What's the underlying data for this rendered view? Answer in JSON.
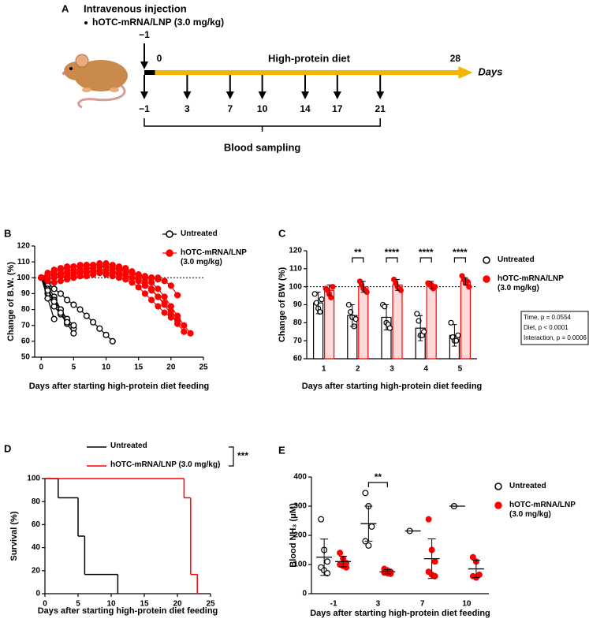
{
  "diagram": {
    "label": "A",
    "title": "Intravenous injection",
    "bullet": "hOTC-mRNA/LNP (3.0 mg/kg)",
    "injection_day": {
      "value": -1,
      "label": "−1"
    },
    "diet_start": 0,
    "diet_label": "High-protein diet",
    "diet_end": 28,
    "diet_color": "#f5b400",
    "axis_label": "Days",
    "sampling_days": [
      {
        "value": -1,
        "label": "−1"
      },
      3,
      7,
      10,
      14,
      17,
      21
    ],
    "sampling_label": "Blood sampling"
  },
  "chart_data": [
    {
      "type": "line",
      "label": "B",
      "xlabel": "Days after starting high-protein diet feeding",
      "ylabel": "Change of B.W. (%)",
      "xlim": [
        -1,
        25
      ],
      "xticks": [
        0,
        5,
        10,
        15,
        20,
        25
      ],
      "ylim": [
        50,
        120
      ],
      "yticks": [
        50,
        60,
        70,
        80,
        90,
        100,
        110,
        120
      ],
      "reference_line": 100,
      "legend": "top-right",
      "series": [
        {
          "name": "Untreated",
          "color": "#000000",
          "marker": "open",
          "lines": [
            {
              "x": [
                0,
                1,
                2,
                3,
                4,
                5,
                6,
                7,
                8,
                9,
                10,
                11
              ],
              "values": [
                100,
                97,
                93,
                90,
                86,
                83,
                80,
                76,
                72,
                68,
                64,
                60
              ]
            },
            {
              "x": [
                0,
                1,
                2,
                3,
                4,
                5
              ],
              "values": [
                100,
                95,
                88,
                80,
                73,
                68
              ]
            },
            {
              "x": [
                0,
                1,
                2,
                3,
                4,
                5
              ],
              "values": [
                100,
                93,
                86,
                80,
                74,
                70
              ]
            },
            {
              "x": [
                0,
                1,
                2,
                3,
                4,
                5
              ],
              "values": [
                100,
                90,
                82,
                77,
                71,
                65
              ]
            },
            {
              "x": [
                0,
                1,
                2,
                3,
                4
              ],
              "values": [
                100,
                92,
                85,
                78,
                72
              ]
            },
            {
              "x": [
                0,
                1,
                2
              ],
              "values": [
                100,
                87,
                74
              ]
            }
          ]
        },
        {
          "name": "hOTC-mRNA/LNP (3.0 mg/kg)",
          "color": "#ff0000",
          "marker": "filled",
          "lines": [
            {
              "x": [
                0,
                1,
                2,
                3,
                4,
                5,
                6,
                7,
                8,
                9,
                10,
                11,
                12,
                13,
                14,
                15,
                16,
                17,
                18,
                19,
                20,
                21,
                22,
                23
              ],
              "values": [
                100,
                103,
                105,
                106,
                107,
                107,
                108,
                108,
                108,
                109,
                109,
                108,
                107,
                106,
                104,
                102,
                100,
                97,
                93,
                88,
                82,
                76,
                70,
                65
              ]
            },
            {
              "x": [
                0,
                1,
                2,
                3,
                4,
                5,
                6,
                7,
                8,
                9,
                10,
                11,
                12,
                13,
                14,
                15,
                16,
                17,
                18,
                19,
                20,
                21,
                22
              ],
              "values": [
                100,
                101,
                102,
                103,
                104,
                105,
                105,
                106,
                106,
                107,
                107,
                106,
                106,
                105,
                103,
                100,
                97,
                93,
                88,
                83,
                77,
                71,
                66
              ]
            },
            {
              "x": [
                0,
                1,
                2,
                3,
                4,
                5,
                6,
                7,
                8,
                9,
                10,
                11,
                12,
                13,
                14,
                15,
                16,
                17,
                18,
                19,
                20,
                21
              ],
              "values": [
                100,
                99,
                100,
                101,
                101,
                102,
                103,
                103,
                104,
                105,
                105,
                104,
                103,
                102,
                100,
                98,
                95,
                92,
                88,
                84,
                79,
                74
              ]
            },
            {
              "x": [
                0,
                1,
                2,
                3,
                4,
                5,
                6,
                7,
                8,
                9,
                10,
                11,
                12,
                13,
                14,
                15,
                16,
                17,
                18,
                19,
                20,
                21
              ],
              "values": [
                100,
                98,
                97,
                98,
                99,
                100,
                101,
                101,
                102,
                103,
                102,
                101,
                100,
                99,
                97,
                94,
                90,
                86,
                82,
                78,
                75,
                73
              ]
            },
            {
              "x": [
                0,
                1,
                2,
                3,
                4,
                5,
                6,
                7,
                8,
                9,
                10,
                11,
                12,
                13,
                14,
                15,
                16,
                17,
                18,
                19,
                20,
                21
              ],
              "values": [
                100,
                102,
                104,
                105,
                106,
                107,
                107,
                108,
                108,
                108,
                107,
                106,
                105,
                104,
                103,
                102,
                101,
                100,
                100,
                98,
                95,
                89
              ]
            },
            {
              "x": [
                0,
                1,
                2,
                3,
                4,
                5,
                6,
                7,
                8,
                9,
                10,
                11,
                12,
                13,
                14,
                15,
                16,
                17,
                18
              ],
              "values": [
                100,
                101,
                102,
                102,
                103,
                103,
                104,
                104,
                104,
                104,
                103,
                103,
                102,
                101,
                100,
                100,
                100,
                100,
                99
              ]
            }
          ]
        }
      ]
    },
    {
      "type": "bar",
      "label": "C",
      "xlabel": "Days after starting high-protein diet feeding",
      "ylabel": "Change of BW (%)",
      "categories": [
        "1",
        "2",
        "3",
        "4",
        "5"
      ],
      "ylim": [
        60,
        120
      ],
      "yticks": [
        60,
        70,
        80,
        90,
        100,
        110,
        120
      ],
      "reference_line": 100,
      "legend": "right",
      "significance": [
        null,
        "**",
        "****",
        "****",
        "****"
      ],
      "stats": [
        "Time, p = 0.0554",
        "Diet, p < 0.0001",
        "Interaction, p = 0.0006"
      ],
      "series": [
        {
          "name": "Untreated",
          "color": "#000000",
          "bar_fill": "#ffffff",
          "marker": "open",
          "values": [
            91,
            84,
            83,
            77,
            73
          ],
          "errors": [
            6,
            6,
            7,
            7,
            6
          ],
          "points": [
            [
              96,
              91,
              88,
              86,
              93
            ],
            [
              90,
              86,
              83,
              78,
              82
            ],
            [
              90,
              89,
              80,
              79,
              77
            ],
            [
              85,
              81,
              73,
              73,
              75
            ],
            [
              80,
              72,
              70,
              70,
              73
            ]
          ]
        },
        {
          "name": "hOTC-mRNA/LNP (3.0 mg/kg)",
          "color": "#ff0000",
          "bar_fill": "#ffd9d9",
          "marker": "filled",
          "values": [
            98,
            100,
            101,
            101,
            103
          ],
          "errors": [
            3,
            3,
            3,
            2,
            2
          ],
          "points": [
            [
              99,
              98,
              96,
              94,
              100
            ],
            [
              103,
              101,
              99,
              98,
              97
            ],
            [
              104,
              102,
              100,
              99,
              98
            ],
            [
              102,
              101,
              101,
              99,
              100
            ],
            [
              106,
              104,
              102,
              103,
              100
            ]
          ]
        }
      ]
    },
    {
      "type": "step",
      "label": "D",
      "xlabel": "Days after starting high-protein diet feeding",
      "ylabel": "Survival (%)",
      "xlim": [
        0,
        25
      ],
      "xticks": [
        0,
        5,
        10,
        15,
        20,
        25
      ],
      "ylim": [
        0,
        100
      ],
      "yticks": [
        0,
        20,
        40,
        60,
        80,
        100
      ],
      "legend": "top",
      "significance": "***",
      "series": [
        {
          "name": "Untreated",
          "color": "#000000",
          "x": [
            0,
            2,
            5,
            6,
            11
          ],
          "values": [
            100,
            83.3,
            50,
            16.7,
            0
          ]
        },
        {
          "name": "hOTC-mRNA/LNP (3.0 mg/kg)",
          "color": "#ff0000",
          "x": [
            0,
            21,
            22,
            23
          ],
          "values": [
            100,
            83.3,
            16.7,
            0
          ]
        }
      ]
    },
    {
      "type": "dot",
      "label": "E",
      "xlabel": "Days after starting high-protein diet feeding",
      "ylabel": "Blood NH₃ (μM)",
      "categories": [
        "-1",
        "3",
        "7",
        "10"
      ],
      "ylim": [
        0,
        400
      ],
      "yticks": [
        0,
        100,
        200,
        300,
        400
      ],
      "legend": "right",
      "significance": [
        null,
        "**",
        null,
        null
      ],
      "series": [
        {
          "name": "Untreated",
          "color": "#000000",
          "marker": "open",
          "values": [
            125,
            240,
            215,
            300
          ],
          "errors": [
            62,
            60,
            0,
            0
          ],
          "points": [
            [
              255,
              150,
              110,
              90,
              80,
              70
            ],
            [
              345,
              300,
              230,
              180,
              165
            ],
            [
              215
            ],
            [
              300
            ]
          ]
        },
        {
          "name": "hOTC-mRNA/LNP (3.0 mg/kg)",
          "color": "#ff0000",
          "marker": "filled",
          "values": [
            110,
            75,
            120,
            85
          ],
          "errors": [
            18,
            7,
            68,
            30
          ],
          "points": [
            [
              140,
              120,
              105,
              100,
              95,
              90
            ],
            [
              85,
              80,
              75,
              72,
              70,
              68
            ],
            [
              255,
              150,
              110,
              75,
              65,
              60
            ],
            [
              125,
              110,
              65,
              60,
              55
            ]
          ]
        }
      ]
    }
  ]
}
